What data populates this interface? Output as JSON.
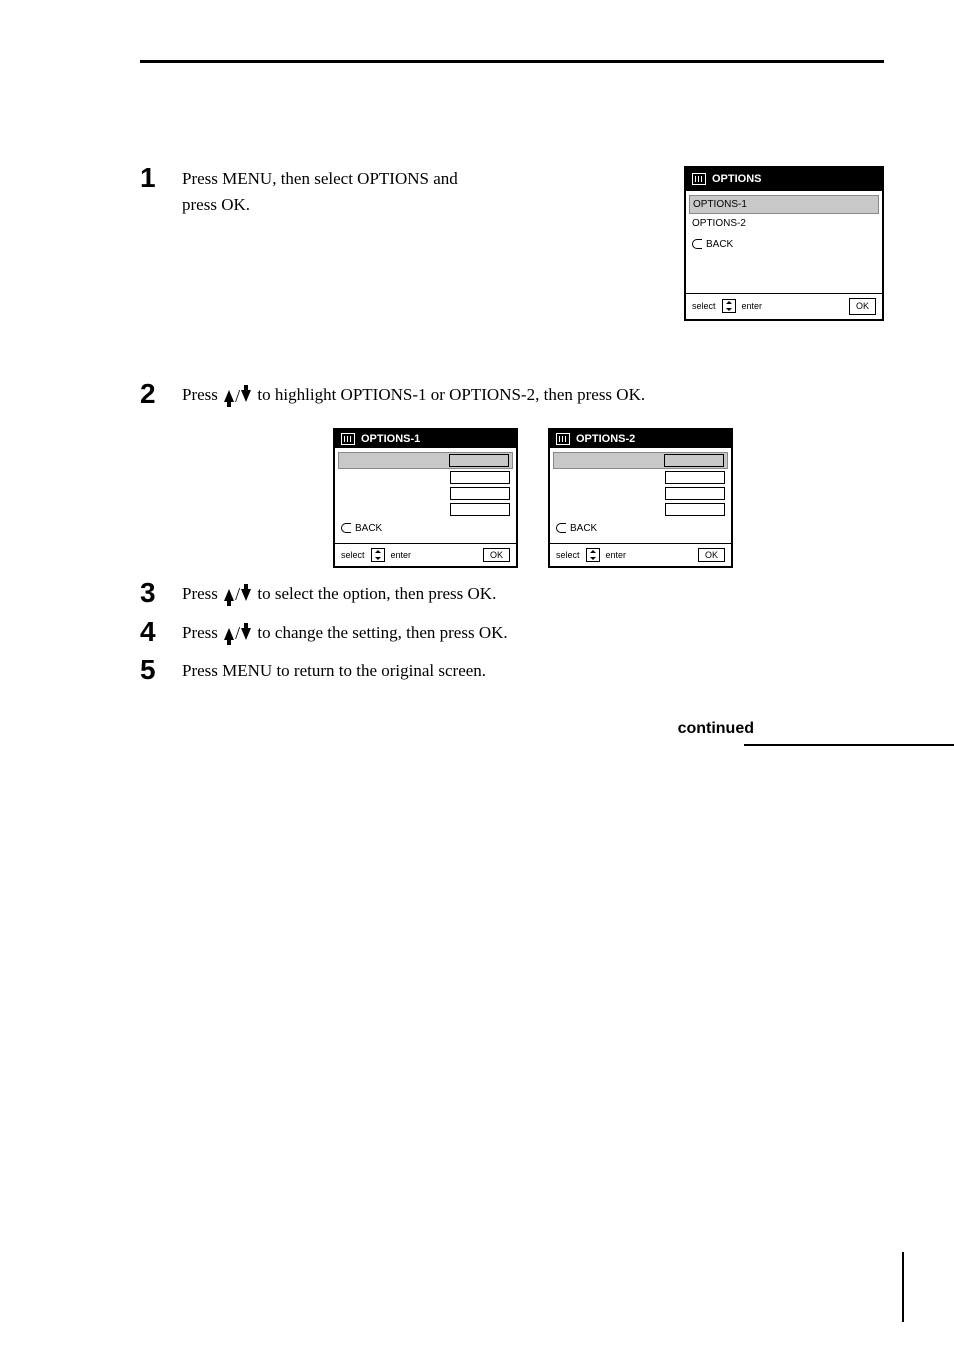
{
  "steps": {
    "s1": {
      "num": "1",
      "text_a": "Press MENU, then select OPTIONS and",
      "text_b": "press OK."
    },
    "s2": {
      "num": "2",
      "text_a": "Press ",
      "text_b": " to highlight OPTIONS-1 or OPTIONS-2, then press OK."
    },
    "s3": {
      "num": "3",
      "text_a": "Press ",
      "text_b": " to select the option, then press OK."
    },
    "s4": {
      "num": "4",
      "text_a": "Press ",
      "text_b": " to change the setting, then press OK."
    },
    "s5": {
      "num": "5",
      "text": "Press MENU to return to the original screen."
    }
  },
  "continued": "continued",
  "menus": {
    "top": {
      "title": "OPTIONS",
      "row1": "OPTIONS-1",
      "row2": "OPTIONS-2",
      "back": "BACK",
      "select": "select",
      "enter": "enter",
      "ok": "OK"
    },
    "left": {
      "title": "OPTIONS-1",
      "rows": [
        {
          "label": "",
          "val": ""
        },
        {
          "label": "",
          "val": ""
        },
        {
          "label": "",
          "val": ""
        },
        {
          "label": "",
          "val": ""
        }
      ],
      "back": "BACK",
      "select": "select",
      "enter": "enter",
      "ok": "OK"
    },
    "right": {
      "title": "OPTIONS-2",
      "rows": [
        {
          "label": "",
          "val": ""
        },
        {
          "label": "",
          "val": ""
        },
        {
          "label": "",
          "val": ""
        },
        {
          "label": "",
          "val": ""
        }
      ],
      "back": "BACK",
      "select": "select",
      "enter": "enter",
      "ok": "OK"
    }
  },
  "colors": {
    "text": "#000000",
    "bg": "#ffffff",
    "menu_header_bg": "#000000",
    "menu_header_fg": "#ffffff",
    "highlight_bg": "#c8c8c8"
  }
}
